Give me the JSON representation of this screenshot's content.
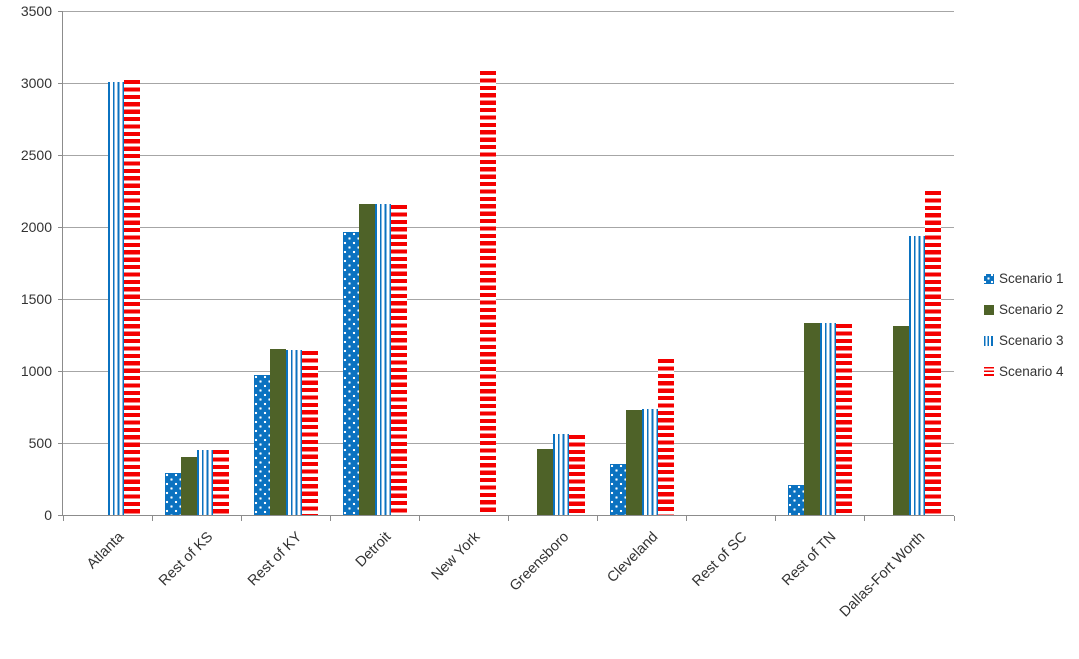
{
  "chart_data": {
    "type": "bar",
    "title": "",
    "xlabel": "",
    "ylabel": "",
    "categories": [
      "Atlanta",
      "Rest of KS",
      "Rest of KY",
      "Detroit",
      "New York",
      "Greensboro",
      "Cleveland",
      "Rest of SC",
      "Rest of TN",
      "Dallas-Fort Worth"
    ],
    "series": [
      {
        "name": "Scenario 1",
        "color": "#0B72C0",
        "pattern": "dots",
        "values": [
          0,
          290,
          970,
          1965,
          0,
          0,
          355,
          0,
          205,
          0
        ]
      },
      {
        "name": "Scenario 2",
        "color": "#4E6228",
        "pattern": "solid",
        "values": [
          0,
          400,
          1150,
          2160,
          0,
          455,
          730,
          0,
          1330,
          1310
        ]
      },
      {
        "name": "Scenario 3",
        "color": "#0B72C0",
        "pattern": "vstripes",
        "values": [
          3005,
          450,
          1145,
          2160,
          0,
          560,
          735,
          0,
          1330,
          1935
        ]
      },
      {
        "name": "Scenario 4",
        "color": "#F40000",
        "pattern": "hstripes",
        "values": [
          3020,
          450,
          1140,
          2150,
          3085,
          555,
          1085,
          0,
          1325,
          2250
        ]
      }
    ],
    "y_axis": {
      "min": 0,
      "max": 3500,
      "step": 500,
      "tick_labels": [
        "0",
        "500",
        "1000",
        "1500",
        "2000",
        "2500",
        "3000",
        "3500"
      ]
    },
    "legend": {
      "position": "right",
      "entries": [
        "Scenario 1",
        "Scenario 2",
        "Scenario 3",
        "Scenario 4"
      ]
    },
    "grid": true,
    "colors": {
      "gridline": "#A6A6A6",
      "axis": "#8C8C8C",
      "text": "#333333",
      "background": "#FFFFFF"
    }
  }
}
